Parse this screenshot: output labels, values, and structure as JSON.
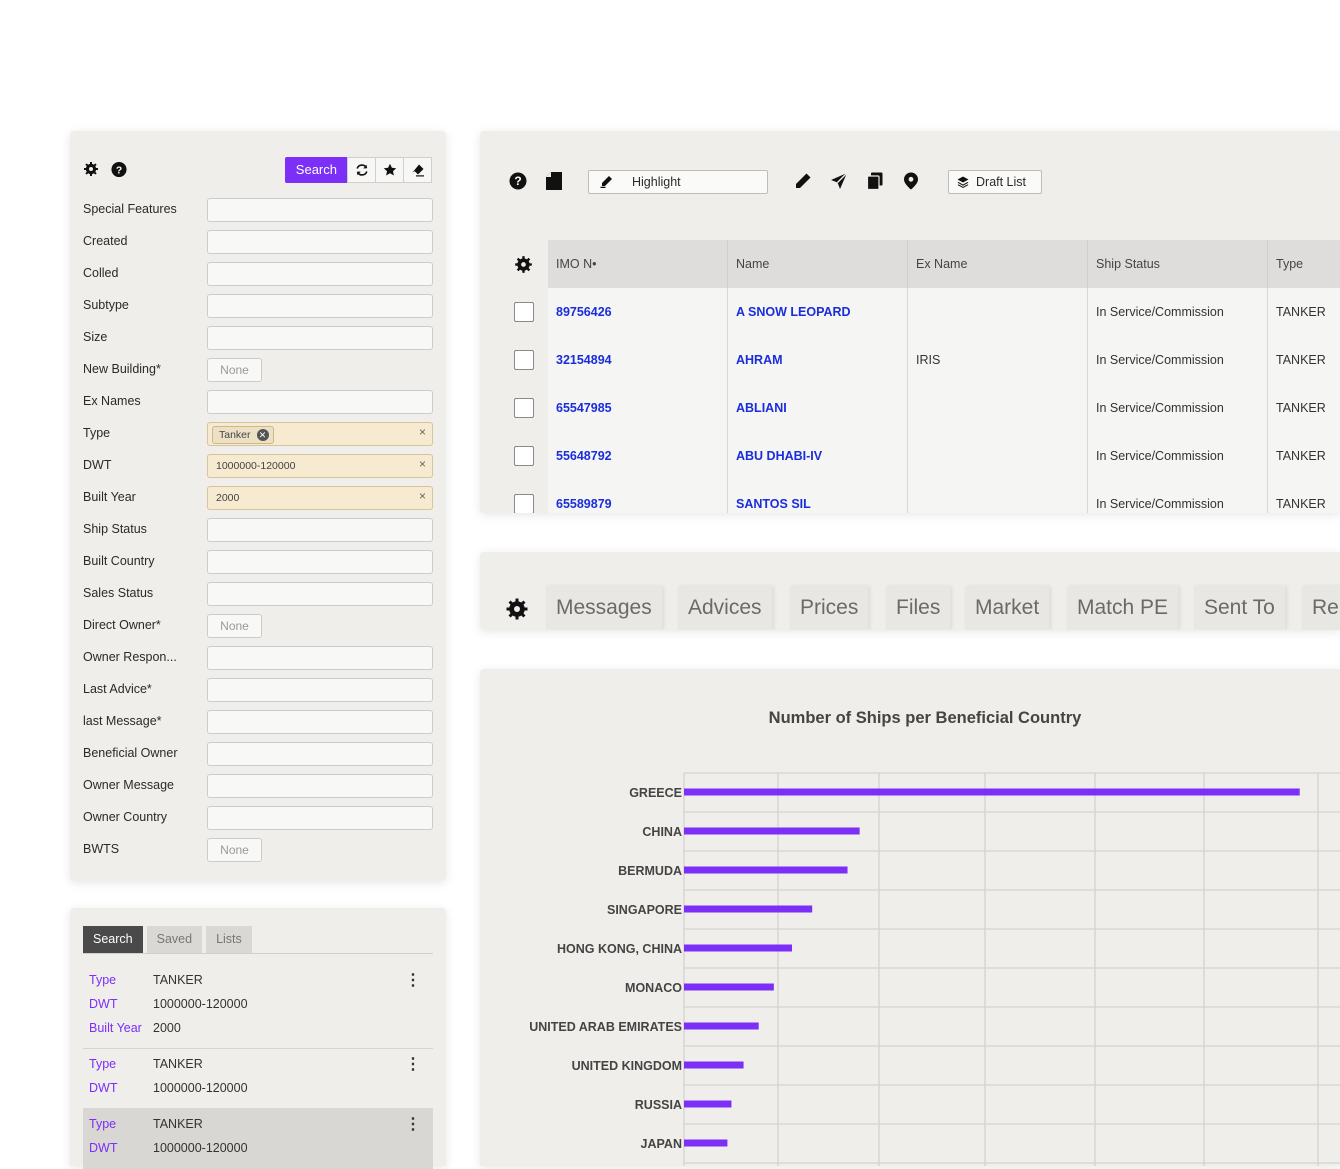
{
  "filter": {
    "search_label": "Search",
    "fields": [
      {
        "label": "Special Features",
        "kind": "input",
        "value": ""
      },
      {
        "label": "Created",
        "kind": "input",
        "value": ""
      },
      {
        "label": "Colled",
        "kind": "input",
        "value": ""
      },
      {
        "label": "Subtype",
        "kind": "input",
        "value": ""
      },
      {
        "label": "Size",
        "kind": "input",
        "value": ""
      },
      {
        "label": "New Building*",
        "kind": "select",
        "value": "None"
      },
      {
        "label": "Ex Names",
        "kind": "input",
        "value": ""
      },
      {
        "label": "Type",
        "kind": "chip",
        "value": "Tanker"
      },
      {
        "label": "DWT",
        "kind": "filled",
        "value": "1000000-120000"
      },
      {
        "label": "Built Year",
        "kind": "filled",
        "value": "2000"
      },
      {
        "label": "Ship Status",
        "kind": "input",
        "value": ""
      },
      {
        "label": "Built Country",
        "kind": "input",
        "value": ""
      },
      {
        "label": "Sales Status",
        "kind": "input",
        "value": ""
      },
      {
        "label": "Direct Owner*",
        "kind": "select",
        "value": "None"
      },
      {
        "label": "Owner Respon...",
        "kind": "input",
        "value": ""
      },
      {
        "label": "Last Advice*",
        "kind": "input",
        "value": ""
      },
      {
        "label": "last Message*",
        "kind": "input",
        "value": ""
      },
      {
        "label": "Beneficial Owner",
        "kind": "input",
        "value": ""
      },
      {
        "label": "Owner Message",
        "kind": "input",
        "value": ""
      },
      {
        "label": "Owner Country",
        "kind": "input",
        "value": ""
      },
      {
        "label": "BWTS",
        "kind": "select",
        "value": "None"
      }
    ]
  },
  "saved": {
    "tabs": [
      "Search",
      "Saved",
      "Lists"
    ],
    "items": [
      {
        "rows": [
          {
            "k": "Type",
            "v": "TANKER"
          },
          {
            "k": "DWT",
            "v": "1000000-120000"
          },
          {
            "k": "Built Year",
            "v": "2000"
          }
        ]
      },
      {
        "rows": [
          {
            "k": "Type",
            "v": "TANKER"
          },
          {
            "k": "DWT",
            "v": "1000000-120000"
          }
        ]
      },
      {
        "rows": [
          {
            "k": "Type",
            "v": "TANKER"
          },
          {
            "k": "DWT",
            "v": "1000000-120000"
          }
        ]
      }
    ]
  },
  "toolbar": {
    "highlight_label": "Highlight",
    "draft_label": "Draft List"
  },
  "table": {
    "columns": [
      "IMO N•",
      "Name",
      "Ex Name",
      "Ship Status",
      "Type"
    ],
    "rows": [
      [
        "89756426",
        "A SNOW LEOPARD",
        "",
        "In Service/Commission",
        "TANKER"
      ],
      [
        "32154894",
        "AHRAM",
        "IRIS",
        "In Service/Commission",
        "TANKER"
      ],
      [
        "65547985",
        "ABLIANI",
        "",
        "In Service/Commission",
        "TANKER"
      ],
      [
        "55648792",
        "ABU DHABI-IV",
        "",
        "In Service/Commission",
        "TANKER"
      ],
      [
        "65589879",
        "SANTOS SIL",
        "",
        "In Service/Commission",
        "TANKER"
      ]
    ]
  },
  "detail_tabs": [
    "Messages",
    "Advices",
    "Prices",
    "Files",
    "Market",
    "Match PE",
    "Sent To",
    "Re"
  ],
  "colors": {
    "accent": "#7b2ff7",
    "link": "#1a2ddb",
    "panel": "#efeeeb"
  },
  "chart_data": {
    "type": "bar",
    "orientation": "horizontal",
    "title": "Number of Ships per Beneficial Country",
    "categories": [
      "GREECE",
      "CHINA",
      "BERMUDA",
      "SINGAPORE",
      "HONG KONG, CHINA",
      "MONACO",
      "UNITED ARAB EMIRATES",
      "UNITED KINGDOM",
      "RUSSIA",
      "JAPAN"
    ],
    "values": [
      610,
      174,
      162,
      127,
      107,
      89,
      74,
      59,
      47,
      43
    ],
    "xlim": [
      0,
      640
    ],
    "grid": true
  }
}
